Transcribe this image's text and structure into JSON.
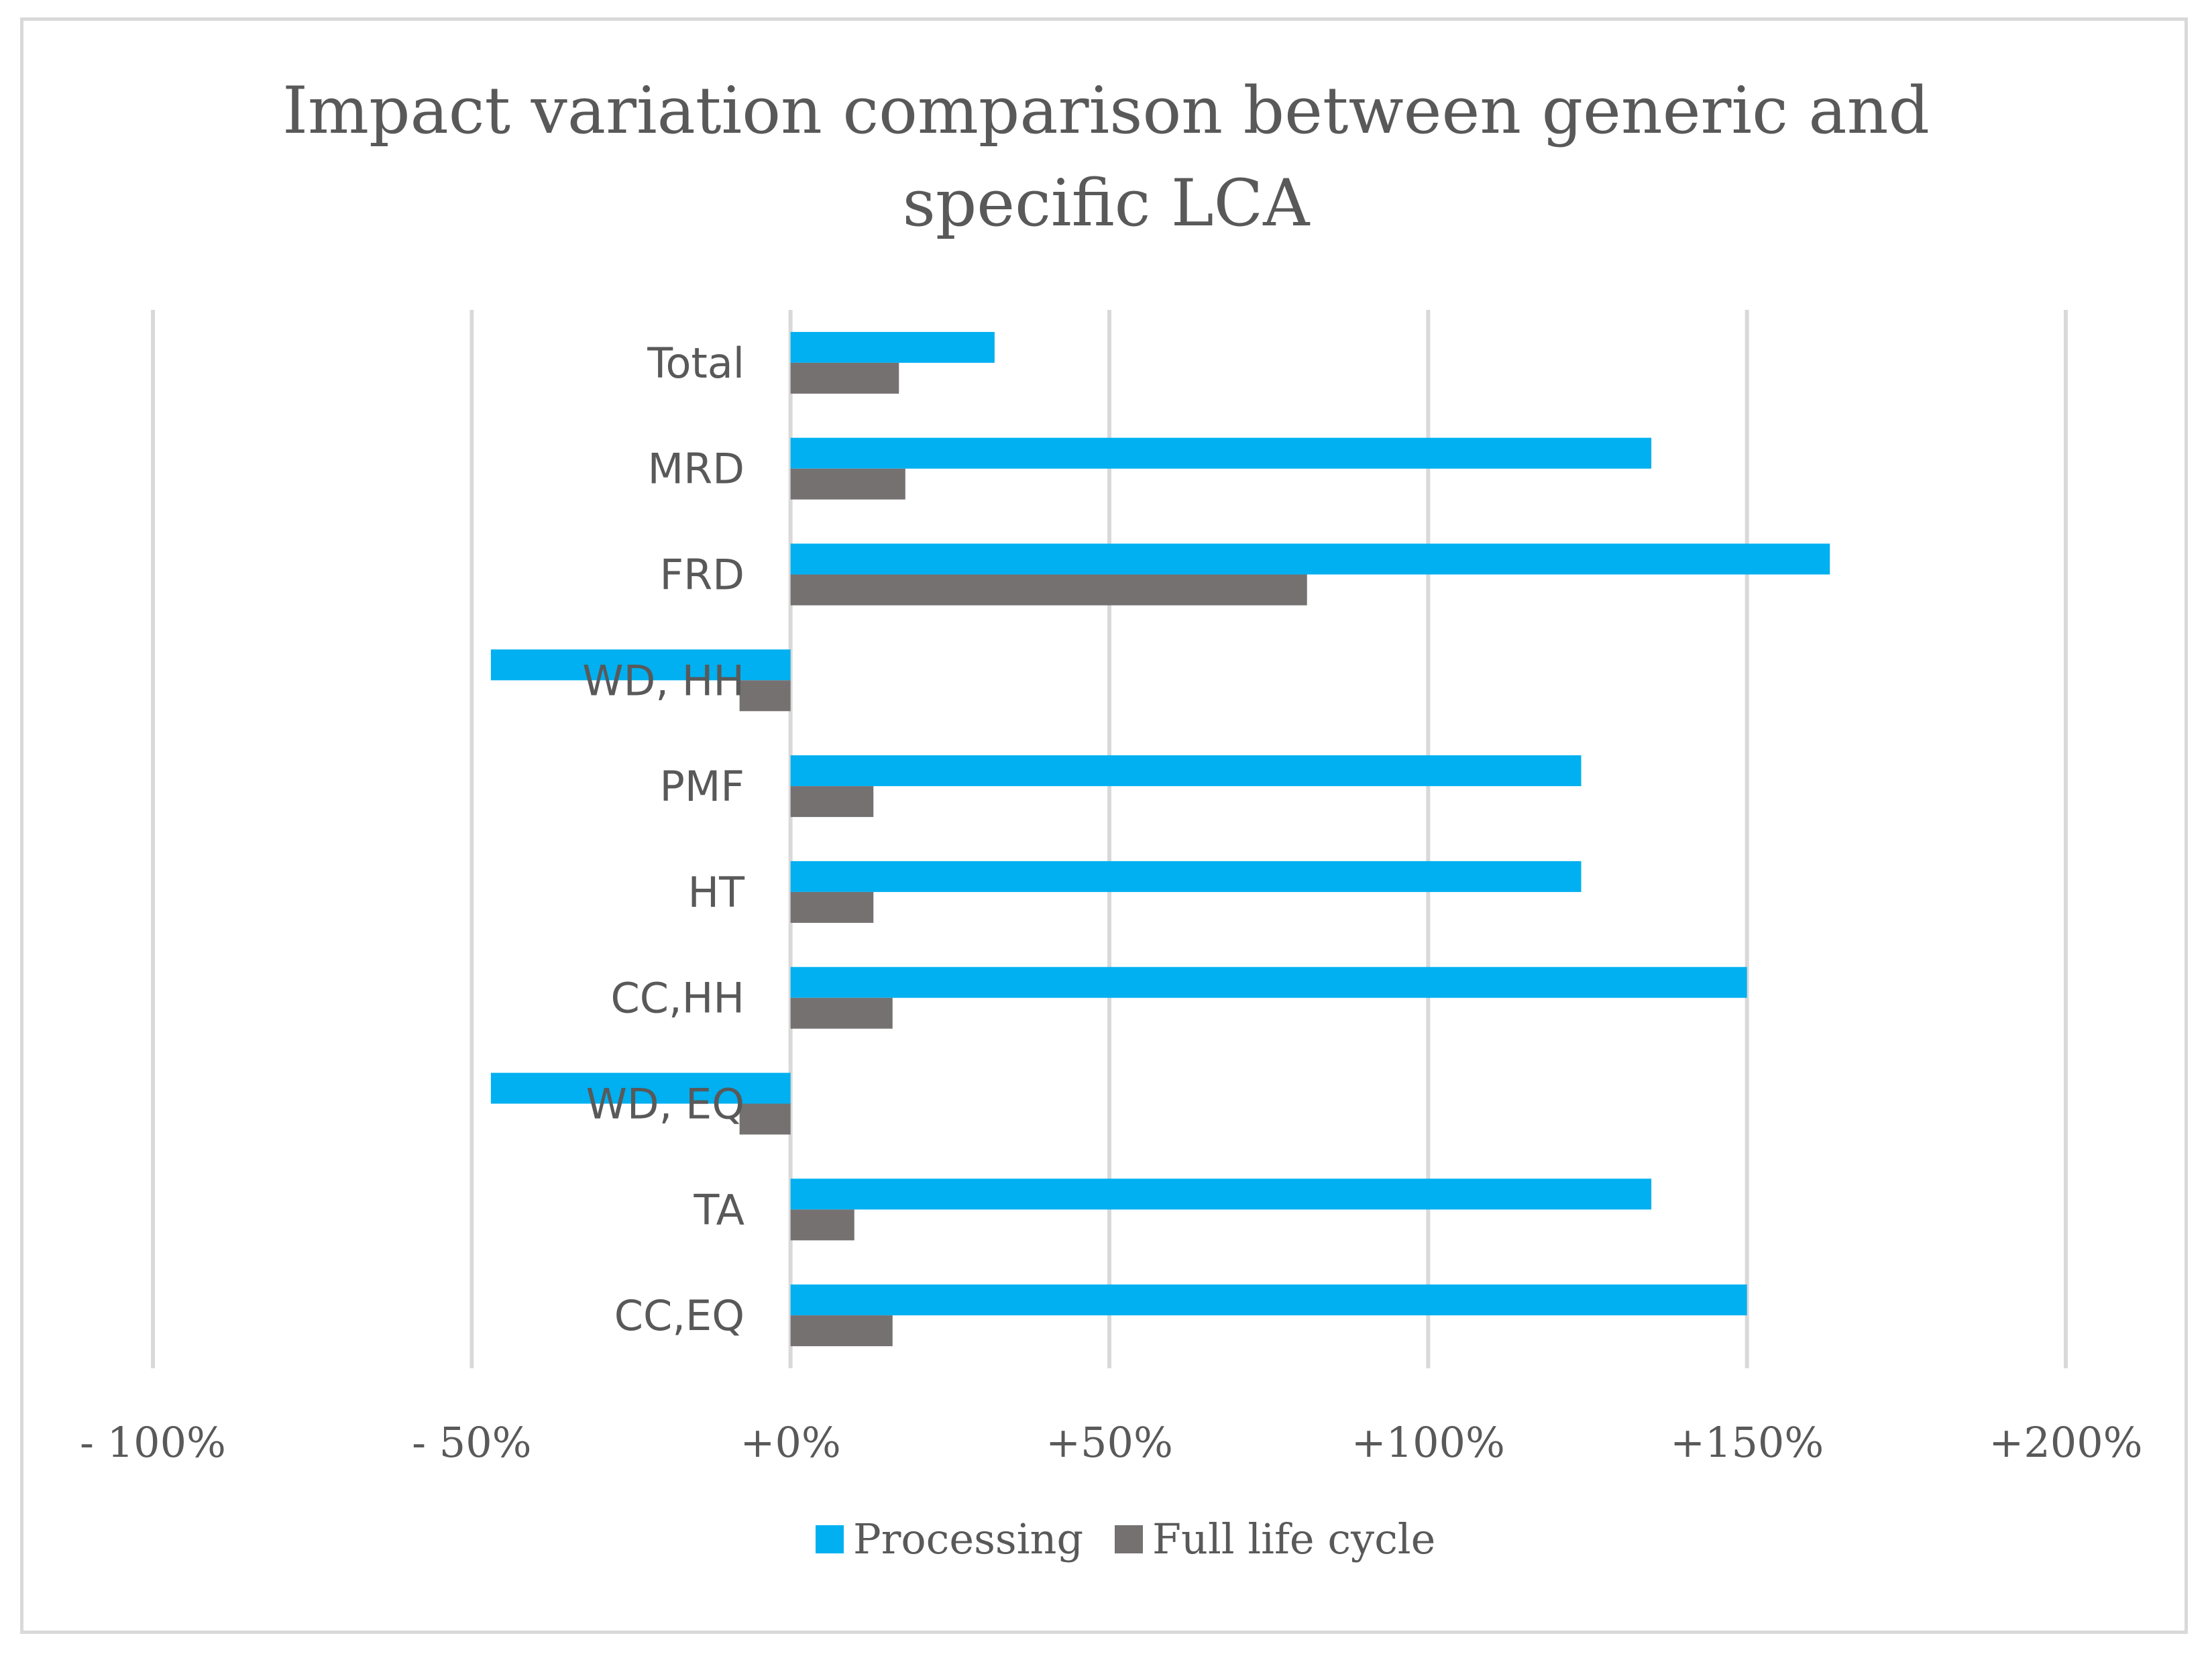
{
  "chart_data": {
    "type": "bar",
    "orientation": "horizontal",
    "title": "Impact variation comparison between generic and specific LCA",
    "title_lines": [
      "Impact variation comparison between generic and",
      "specific LCA"
    ],
    "categories": [
      "Total",
      "MRD",
      "FRD",
      "WD, HH",
      "PMF",
      "HT",
      "CC,HH",
      "WD, EQ",
      "TA",
      "CC,EQ"
    ],
    "series": [
      {
        "name": "Processing",
        "color": "#00b0f0",
        "values": [
          32,
          135,
          163,
          -47,
          124,
          124,
          150,
          -47,
          135,
          150
        ]
      },
      {
        "name": "Full life cycle",
        "color": "#767171",
        "values": [
          17,
          18,
          81,
          -8,
          13,
          13,
          16,
          -8,
          10,
          16
        ]
      }
    ],
    "xlim": [
      -100,
      200
    ],
    "xticks": [
      -100,
      -50,
      0,
      50,
      100,
      150,
      200
    ],
    "xtick_labels": [
      "- 100%",
      "- 50%",
      "+0%",
      "+50%",
      "+100%",
      "+150%",
      "+200%"
    ],
    "xlabel": "",
    "ylabel": "",
    "grid": true,
    "legend_position": "bottom"
  },
  "colors": {
    "text": "#595959",
    "grid": "#d9d9d9",
    "border": "#d9d9d9"
  }
}
